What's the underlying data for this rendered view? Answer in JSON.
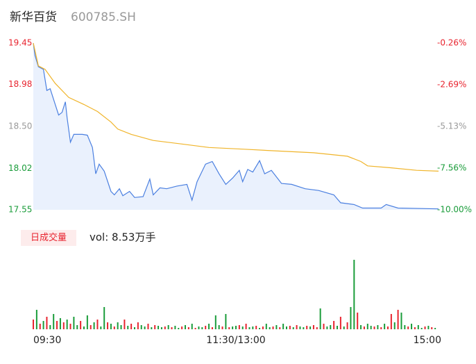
{
  "title": "新华百货",
  "code": "600785.SH",
  "volume_label": "日成交量",
  "volume_text": "vol: 8.53万手",
  "chart_data": {
    "type": "line",
    "xlim": [
      0,
      240
    ],
    "xticks": [
      {
        "value": 0,
        "label": "09:30"
      },
      {
        "value": 120,
        "label": "11:30/13:00"
      },
      {
        "value": 240,
        "label": "15:00"
      }
    ],
    "ylim": [
      17.55,
      19.45
    ],
    "yticks": [
      17.55,
      18.02,
      {
        "value": 18.5,
        "label": "18.50"
      },
      18.98,
      19.45
    ],
    "ytick_colors": [
      "#1a9c3a",
      "#1a9c3a",
      "#999999",
      "#e8242f",
      "#e8242f"
    ],
    "y2lim": [
      -10,
      -0.26
    ],
    "y2ticks": [
      {
        "value": -10,
        "label": "-10.00%"
      },
      {
        "value": -7.56,
        "label": "-7.56%"
      },
      {
        "value": -5.13,
        "label": "-5.13%"
      },
      {
        "value": -2.69,
        "label": "-2.69%"
      },
      {
        "value": -0.26,
        "label": "-0.26%"
      }
    ],
    "series": [
      {
        "color": "#4a7fe0",
        "fill": "#eaf1fd",
        "x": [
          0,
          1,
          3,
          6,
          8,
          10,
          13,
          15,
          17,
          19,
          20,
          22,
          24,
          29,
          32,
          35,
          37,
          39,
          42,
          46,
          48,
          51,
          53,
          57,
          60,
          65,
          69,
          71,
          75,
          79,
          85,
          91,
          94,
          97,
          102,
          106,
          110,
          114,
          118,
          122,
          124,
          127,
          130,
          134,
          137,
          141,
          147,
          153,
          161,
          169,
          178,
          182,
          190,
          195,
          206,
          209,
          216,
          240
        ],
        "values": [
          19.45,
          19.31,
          19.18,
          19.15,
          18.91,
          18.93,
          18.75,
          18.63,
          18.66,
          18.78,
          18.6,
          18.32,
          18.41,
          18.41,
          18.4,
          18.26,
          17.96,
          18.07,
          17.99,
          17.76,
          17.72,
          17.79,
          17.71,
          17.76,
          17.69,
          17.7,
          17.9,
          17.72,
          17.8,
          17.79,
          17.82,
          17.84,
          17.66,
          17.87,
          18.07,
          18.1,
          17.96,
          17.84,
          17.91,
          18,
          17.87,
          18.01,
          17.98,
          18.11,
          17.96,
          18,
          17.85,
          17.84,
          17.79,
          17.77,
          17.72,
          17.63,
          17.61,
          17.57,
          17.57,
          17.61,
          17.57,
          17.56
        ]
      },
      {
        "color": "#f0b429",
        "x": [
          0,
          3,
          7,
          13,
          21,
          30,
          38,
          46,
          50,
          58,
          71,
          88,
          104,
          125,
          145,
          166,
          186,
          194,
          198,
          211,
          227,
          240
        ],
        "values": [
          19.45,
          19.19,
          19.15,
          18.99,
          18.83,
          18.75,
          18.67,
          18.55,
          18.47,
          18.41,
          18.34,
          18.3,
          18.26,
          18.24,
          18.22,
          18.2,
          18.16,
          18.1,
          18.05,
          18.03,
          18,
          17.99
        ]
      }
    ],
    "volume": {
      "type": "bar",
      "ylim": [
        0,
        4000
      ],
      "step": 2,
      "values": [
        560,
        1120,
        320,
        480,
        720,
        240,
        880,
        480,
        640,
        400,
        560,
        320,
        720,
        240,
        480,
        160,
        800,
        240,
        400,
        560,
        160,
        1280,
        400,
        320,
        160,
        400,
        240,
        560,
        200,
        320,
        120,
        400,
        240,
        160,
        320,
        120,
        240,
        200,
        120,
        160,
        240,
        120,
        200,
        80,
        160,
        240,
        120,
        320,
        80,
        160,
        120,
        200,
        320,
        120,
        800,
        240,
        160,
        880,
        120,
        160,
        200,
        240,
        160,
        320,
        120,
        160,
        200,
        80,
        160,
        320,
        120,
        160,
        240,
        120,
        320,
        160,
        200,
        120,
        240,
        160,
        120,
        200,
        160,
        240,
        120,
        1200,
        320,
        160,
        240,
        480,
        200,
        720,
        160,
        400,
        1280,
        4000,
        960,
        240,
        160,
        320,
        200,
        160,
        240,
        120,
        320,
        160,
        880,
        400,
        1120,
        960,
        240,
        160,
        320,
        120,
        240,
        80,
        160,
        200,
        120,
        80
      ],
      "colors": [
        "#e8242f",
        "#1a9c3a",
        "#e8242f",
        "#1a9c3a",
        "#e8242f",
        "#1a9c3a",
        "#1a9c3a",
        "#e8242f",
        "#1a9c3a",
        "#e8242f",
        "#1a9c3a",
        "#e8242f",
        "#1a9c3a",
        "#1a9c3a",
        "#e8242f",
        "#1a9c3a",
        "#1a9c3a",
        "#e8242f",
        "#1a9c3a",
        "#e8242f",
        "#1a9c3a",
        "#1a9c3a",
        "#e8242f",
        "#1a9c3a",
        "#e8242f",
        "#1a9c3a",
        "#1a9c3a",
        "#e8242f",
        "#1a9c3a",
        "#e8242f",
        "#1a9c3a",
        "#e8242f",
        "#1a9c3a",
        "#1a9c3a",
        "#e8242f",
        "#1a9c3a",
        "#e8242f",
        "#1a9c3a",
        "#1a9c3a",
        "#e8242f",
        "#1a9c3a",
        "#e8242f",
        "#1a9c3a",
        "#1a9c3a",
        "#e8242f",
        "#1a9c3a",
        "#e8242f",
        "#1a9c3a",
        "#e8242f",
        "#1a9c3a",
        "#1a9c3a",
        "#e8242f",
        "#1a9c3a",
        "#e8242f",
        "#1a9c3a",
        "#1a9c3a",
        "#e8242f",
        "#1a9c3a",
        "#e8242f",
        "#1a9c3a",
        "#1a9c3a",
        "#e8242f",
        "#1a9c3a",
        "#e8242f",
        "#1a9c3a",
        "#1a9c3a",
        "#e8242f",
        "#1a9c3a",
        "#e8242f",
        "#1a9c3a",
        "#1a9c3a",
        "#e8242f",
        "#1a9c3a",
        "#e8242f",
        "#1a9c3a",
        "#1a9c3a",
        "#e8242f",
        "#1a9c3a",
        "#e8242f",
        "#1a9c3a",
        "#1a9c3a",
        "#e8242f",
        "#1a9c3a",
        "#e8242f",
        "#e8242f",
        "#1a9c3a",
        "#e8242f",
        "#1a9c3a",
        "#1a9c3a",
        "#e8242f",
        "#1a9c3a",
        "#e8242f",
        "#1a9c3a",
        "#e8242f",
        "#1a9c3a",
        "#1a9c3a",
        "#e8242f",
        "#1a9c3a",
        "#e8242f",
        "#1a9c3a",
        "#1a9c3a",
        "#e8242f",
        "#1a9c3a",
        "#e8242f",
        "#1a9c3a",
        "#e8242f",
        "#e8242f",
        "#1a9c3a",
        "#e8242f",
        "#1a9c3a",
        "#1a9c3a",
        "#e8242f",
        "#1a9c3a",
        "#e8242f",
        "#1a9c3a",
        "#1a9c3a",
        "#e8242f",
        "#1a9c3a",
        "#e8242f",
        "#1a9c3a"
      ]
    }
  }
}
